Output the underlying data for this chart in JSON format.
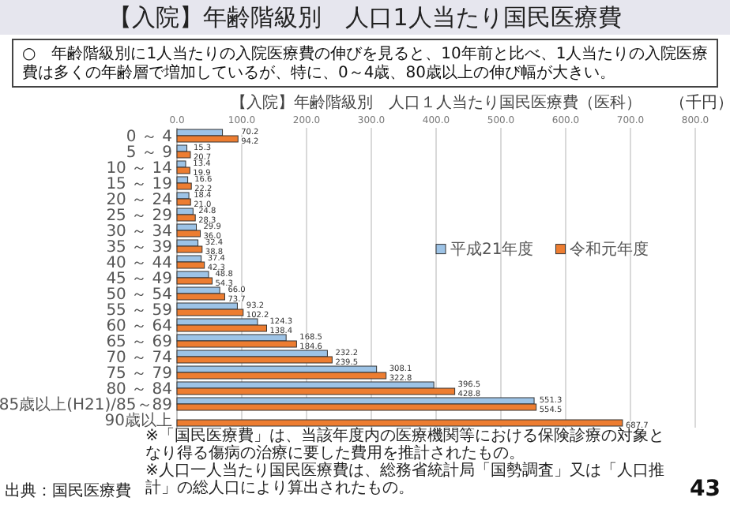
{
  "chart_data": {
    "type": "bar",
    "orientation": "horizontal",
    "title": "【入院】年齢階級別　人口1人当たり国民医療費",
    "subtitle": "【入院】年齢階級別　人口１人当たり国民医療費（医科）",
    "xlabel": "（千円）",
    "categories": [
      "0 ～ 4",
      "5 ～ 9",
      "10 ～ 14",
      "15 ～ 19",
      "20 ～ 24",
      "25 ～ 29",
      "30 ～ 34",
      "35 ～ 39",
      "40 ～ 44",
      "45 ～ 49",
      "50 ～ 54",
      "55 ～ 59",
      "60 ～ 64",
      "65 ～ 69",
      "70 ～ 74",
      "75 ～ 79",
      "80 ～ 84",
      "85歳以上(H21)/85～89",
      "90歳以上"
    ],
    "series": [
      {
        "name": "平成21年度",
        "color": "#9dc3e6",
        "values": [
          70.2,
          15.3,
          13.4,
          16.6,
          18.4,
          24.8,
          29.9,
          32.4,
          37.4,
          48.8,
          66.0,
          93.2,
          124.3,
          168.5,
          232.2,
          308.1,
          396.5,
          551.3,
          null
        ],
        "value_labels": [
          "70.2",
          "15.3",
          "13.4",
          "16.6",
          "18.4",
          "24.8",
          "29.9",
          "32.4",
          "37.4",
          "48.8",
          "66.0",
          "93.2",
          "124.3",
          "168.5",
          "232.2",
          "308.1",
          "396.5",
          "551.3",
          null
        ]
      },
      {
        "name": "令和元年度",
        "color": "#ed7d31",
        "values": [
          94.2,
          20.7,
          19.9,
          22.2,
          21.0,
          28.3,
          36.0,
          38.8,
          42.3,
          54.3,
          73.7,
          102.2,
          138.4,
          184.6,
          239.5,
          322.8,
          428.8,
          554.5,
          687.7
        ],
        "value_labels": [
          "94.2",
          "20.7",
          "19.9",
          "22.2",
          "21.0",
          "28.3",
          "36.0",
          "38.8",
          "42.3",
          "54.3",
          "73.7",
          "102.2",
          "138.4",
          "184.6",
          "239.5",
          "322.8",
          "428.8",
          "554.5",
          "687.7"
        ]
      }
    ],
    "xlim": [
      0,
      800
    ],
    "xticks": [
      {
        "value": 0,
        "label": "0.0"
      },
      {
        "value": 100,
        "label": "100.0"
      },
      {
        "value": 200,
        "label": "200.0"
      },
      {
        "value": 300,
        "label": "300.0"
      },
      {
        "value": 400,
        "label": "400.0"
      },
      {
        "value": 500,
        "label": "500.0"
      },
      {
        "value": 600,
        "label": "600.0"
      },
      {
        "value": 700,
        "label": "700.0"
      },
      {
        "value": 800,
        "label": "800.0"
      }
    ],
    "grid": "x",
    "legend": "right",
    "annotations": [
      "○　年齢階級別に1人当たりの入院医療費の伸びを見ると、10年前と比べ、1人当たりの入院医療費は多くの年齢層で増加しているが、特に、0～4歳、80歳以上の伸び幅が大きい。",
      "※「国民医療費」は、当該年度内の医療機関等における保険診療の対象となり得る傷病の治療に要した費用を推計されたもの。",
      "※人口一人当たり国民医療費は、総務省統計局「国勢調査」又は「人口推計」の総人口により算出されたもの。",
      "出典：国民医療費",
      "43"
    ]
  }
}
